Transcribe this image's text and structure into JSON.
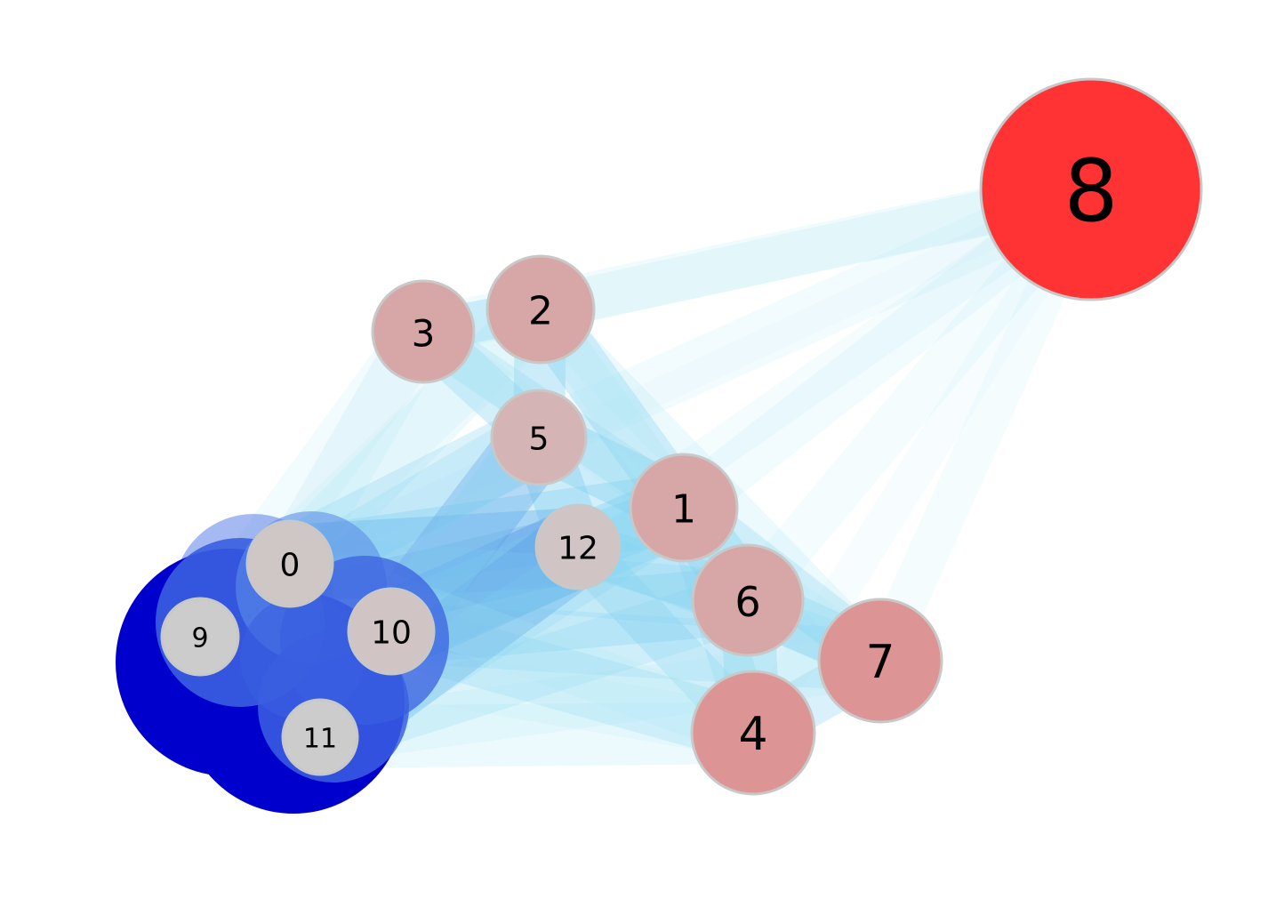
{
  "graph": {
    "nodes": [
      {
        "id": "0",
        "label": "0",
        "color": "#cfc6c6"
      },
      {
        "id": "1",
        "label": "1",
        "color": "#d7a7a7"
      },
      {
        "id": "2",
        "label": "2",
        "color": "#d7a7a7"
      },
      {
        "id": "3",
        "label": "3",
        "color": "#d7a7a7"
      },
      {
        "id": "4",
        "label": "4",
        "color": "#dc9494"
      },
      {
        "id": "5",
        "label": "5",
        "color": "#d4b4b4"
      },
      {
        "id": "6",
        "label": "6",
        "color": "#d7a7a7"
      },
      {
        "id": "7",
        "label": "7",
        "color": "#dc9494"
      },
      {
        "id": "8",
        "label": "8",
        "color": "#ff3333"
      },
      {
        "id": "9",
        "label": "9",
        "color": "#cccccc"
      },
      {
        "id": "10",
        "label": "10",
        "color": "#d0c4c4"
      },
      {
        "id": "11",
        "label": "11",
        "color": "#cccccc"
      },
      {
        "id": "12",
        "label": "12",
        "color": "#d0c4c4"
      }
    ],
    "node_border_color": "#c8c8c8",
    "edge_color_light": "#aee8f5",
    "edge_color_mid": "#7fd0f0",
    "edge_color_dark": "#5b9fe8",
    "hub_color": "#0000cc",
    "hub_color_mid": "#3a5fe0"
  }
}
